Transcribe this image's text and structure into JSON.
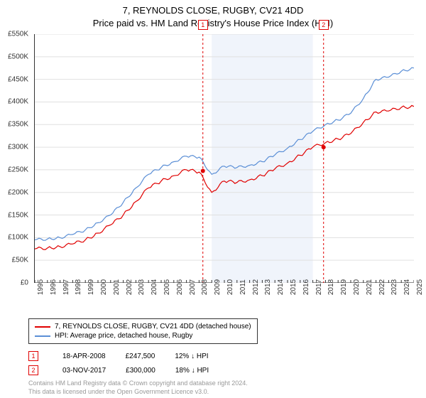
{
  "title_line1": "7, REYNOLDS CLOSE, RUGBY, CV21 4DD",
  "title_line2": "Price paid vs. HM Land Registry's House Price Index (HPI)",
  "chart": {
    "type": "line",
    "ylim": [
      0,
      550000
    ],
    "ytick_step": 50000,
    "y_ticks": [
      "£0",
      "£50K",
      "£100K",
      "£150K",
      "£200K",
      "£250K",
      "£300K",
      "£350K",
      "£400K",
      "£450K",
      "£500K",
      "£550K"
    ],
    "x_years": [
      "1995",
      "1996",
      "1997",
      "1998",
      "1999",
      "2000",
      "2001",
      "2002",
      "2003",
      "2004",
      "2005",
      "2006",
      "2007",
      "2008",
      "2009",
      "2010",
      "2011",
      "2012",
      "2013",
      "2014",
      "2015",
      "2016",
      "2017",
      "2018",
      "2019",
      "2020",
      "2021",
      "2022",
      "2023",
      "2024",
      "2025"
    ],
    "background_color": "#ffffff",
    "grid_color": "#e0e0e0",
    "shaded_band": {
      "x_from": "2009",
      "x_to": "2017",
      "fill": "#f0f4fb"
    },
    "series": [
      {
        "name": "property",
        "label": "7, REYNOLDS CLOSE, RUGBY, CV21 4DD (detached house)",
        "color": "#e00000",
        "line_width": 1.2,
        "data": [
          [
            1995,
            75000
          ],
          [
            1996,
            77000
          ],
          [
            1997,
            80000
          ],
          [
            1998,
            86000
          ],
          [
            1999,
            95000
          ],
          [
            2000,
            110000
          ],
          [
            2001,
            128000
          ],
          [
            2002,
            150000
          ],
          [
            2003,
            180000
          ],
          [
            2004,
            210000
          ],
          [
            2005,
            225000
          ],
          [
            2006,
            237000
          ],
          [
            2007,
            250000
          ],
          [
            2008,
            245000
          ],
          [
            2009,
            200000
          ],
          [
            2010,
            225000
          ],
          [
            2011,
            222000
          ],
          [
            2012,
            228000
          ],
          [
            2013,
            237000
          ],
          [
            2014,
            252000
          ],
          [
            2015,
            265000
          ],
          [
            2016,
            282000
          ],
          [
            2017,
            300000
          ],
          [
            2018,
            310000
          ],
          [
            2019,
            318000
          ],
          [
            2020,
            330000
          ],
          [
            2021,
            355000
          ],
          [
            2022,
            378000
          ],
          [
            2023,
            380000
          ],
          [
            2024,
            388000
          ],
          [
            2025,
            390000
          ]
        ]
      },
      {
        "name": "hpi",
        "label": "HPI: Average price, detached house, Rugby",
        "color": "#5b8fd6",
        "line_width": 1.2,
        "data": [
          [
            1995,
            95000
          ],
          [
            1996,
            97000
          ],
          [
            1997,
            100000
          ],
          [
            1998,
            107000
          ],
          [
            1999,
            117000
          ],
          [
            2000,
            133000
          ],
          [
            2001,
            150000
          ],
          [
            2002,
            178000
          ],
          [
            2003,
            210000
          ],
          [
            2004,
            240000
          ],
          [
            2005,
            255000
          ],
          [
            2006,
            268000
          ],
          [
            2007,
            280000
          ],
          [
            2008,
            278000
          ],
          [
            2009,
            240000
          ],
          [
            2010,
            258000
          ],
          [
            2011,
            255000
          ],
          [
            2012,
            260000
          ],
          [
            2013,
            268000
          ],
          [
            2014,
            283000
          ],
          [
            2015,
            298000
          ],
          [
            2016,
            317000
          ],
          [
            2017,
            335000
          ],
          [
            2018,
            350000
          ],
          [
            2019,
            360000
          ],
          [
            2020,
            375000
          ],
          [
            2021,
            408000
          ],
          [
            2022,
            450000
          ],
          [
            2023,
            455000
          ],
          [
            2024,
            468000
          ],
          [
            2025,
            475000
          ]
        ]
      }
    ],
    "sale_markers": [
      {
        "num": "1",
        "year": 2008.3,
        "value": 247500
      },
      {
        "num": "2",
        "year": 2017.85,
        "value": 300000
      }
    ],
    "marker_line_color": "#e00000",
    "marker_line_dash": "3,3",
    "marker_dot_color": "#e00000",
    "marker_dot_radius": 3
  },
  "legend": {
    "series1_color": "#e00000",
    "series1_label": "7, REYNOLDS CLOSE, RUGBY, CV21 4DD (detached house)",
    "series2_color": "#5b8fd6",
    "series2_label": "HPI: Average price, detached house, Rugby"
  },
  "sales": [
    {
      "num": "1",
      "date": "18-APR-2008",
      "price": "£247,500",
      "delta": "12% ↓ HPI"
    },
    {
      "num": "2",
      "date": "03-NOV-2017",
      "price": "£300,000",
      "delta": "18% ↓ HPI"
    }
  ],
  "footer_line1": "Contains HM Land Registry data © Crown copyright and database right 2024.",
  "footer_line2": "This data is licensed under the Open Government Licence v3.0."
}
